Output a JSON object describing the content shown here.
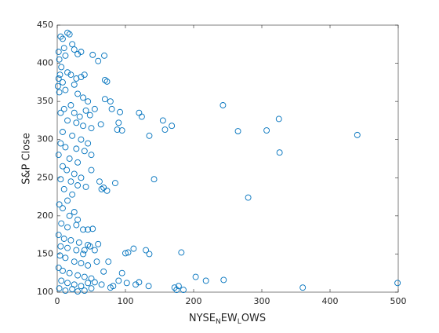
{
  "chart_data": {
    "type": "scatter",
    "xlabel": [
      "NYSE",
      "N",
      "EW",
      "L",
      "OWS"
    ],
    "ylabel": "S&P Close",
    "color": "#0072bd",
    "xlim": [
      0,
      500
    ],
    "xticks": [
      0,
      100,
      200,
      300,
      400,
      500
    ],
    "ylim": [
      100,
      450
    ],
    "yticks": [
      100,
      150,
      200,
      250,
      300,
      350,
      400,
      450
    ],
    "x": [
      243,
      265,
      307,
      325,
      326,
      280,
      440,
      499,
      360,
      244,
      218,
      203,
      178,
      172,
      175,
      185,
      158,
      168,
      155,
      135,
      142,
      124,
      120,
      182,
      135,
      130,
      112,
      104,
      100,
      115,
      120,
      134,
      90,
      102,
      85,
      92,
      90,
      88,
      95,
      78,
      80,
      70,
      70,
      73,
      69,
      60,
      52,
      64,
      68,
      73,
      65,
      62,
      50,
      50,
      45,
      52,
      60,
      55,
      48,
      40,
      58,
      75,
      68,
      82,
      95,
      78,
      65,
      55,
      50,
      40,
      2,
      5,
      8,
      15,
      18,
      22,
      10,
      25,
      30,
      35,
      12,
      3,
      6,
      4,
      2,
      8,
      1,
      3,
      15,
      20,
      28,
      35,
      40,
      25,
      12,
      30,
      38,
      45,
      20,
      10,
      5,
      25,
      33,
      42,
      48,
      55,
      15,
      28,
      38,
      50,
      8,
      22,
      35,
      45,
      5,
      12,
      28,
      40,
      2,
      18,
      30,
      8,
      14,
      25,
      35,
      5,
      20,
      30,
      42,
      10,
      22,
      15,
      3,
      8,
      25,
      18,
      30,
      6,
      15,
      28,
      38,
      2,
      10,
      20,
      32,
      45,
      5,
      15,
      28,
      38,
      4,
      12,
      25,
      35,
      45,
      2,
      8,
      18,
      30,
      40,
      50,
      6,
      15,
      25,
      35,
      45,
      3,
      12,
      22,
      30
    ],
    "y": [
      345,
      311,
      312,
      327,
      283,
      224,
      306,
      112,
      106,
      116,
      115,
      120,
      108,
      106,
      103,
      103,
      313,
      318,
      325,
      305,
      248,
      330,
      335,
      152,
      150,
      155,
      157,
      152,
      151,
      110,
      113,
      108,
      115,
      112,
      243,
      336,
      322,
      313,
      312,
      350,
      340,
      353,
      378,
      376,
      410,
      403,
      411,
      320,
      237,
      233,
      235,
      245,
      260,
      280,
      182,
      183,
      163,
      155,
      160,
      155,
      140,
      140,
      127,
      108,
      125,
      106,
      110,
      113,
      105,
      102,
      415,
      435,
      432,
      440,
      438,
      425,
      420,
      418,
      412,
      415,
      410,
      405,
      395,
      385,
      380,
      375,
      370,
      362,
      388,
      385,
      380,
      382,
      385,
      372,
      365,
      360,
      355,
      350,
      345,
      340,
      335,
      335,
      330,
      338,
      332,
      340,
      325,
      322,
      318,
      315,
      310,
      305,
      300,
      295,
      295,
      290,
      288,
      285,
      280,
      275,
      270,
      265,
      260,
      255,
      250,
      248,
      245,
      240,
      238,
      235,
      228,
      220,
      215,
      210,
      205,
      200,
      195,
      190,
      185,
      188,
      182,
      175,
      170,
      168,
      165,
      162,
      160,
      158,
      155,
      150,
      148,
      145,
      140,
      138,
      135,
      132,
      128,
      125,
      122,
      120,
      118,
      115,
      112,
      110,
      108,
      112,
      105,
      102,
      104,
      101
    ]
  }
}
